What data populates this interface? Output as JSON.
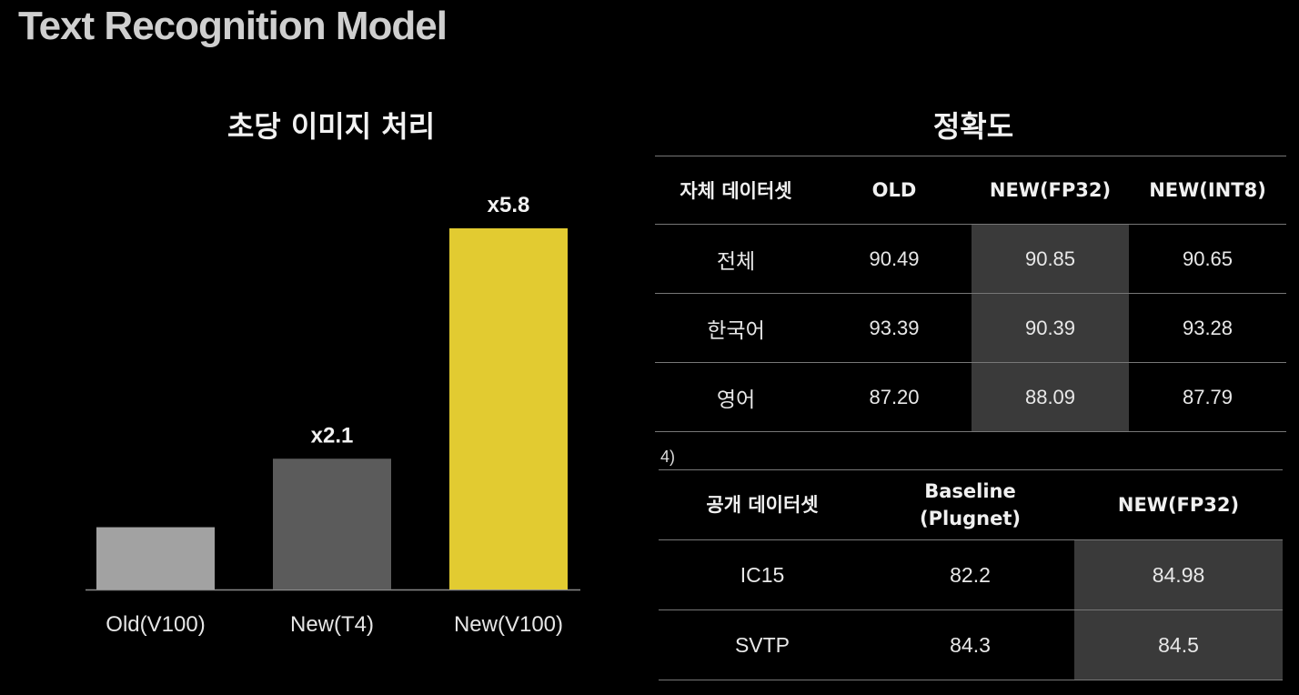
{
  "slide": {
    "title": "Text Recognition Model"
  },
  "left_panel": {
    "title": "초당 이미지 처리"
  },
  "chart_data": {
    "type": "bar",
    "title": "초당 이미지 처리",
    "categories": [
      "Old(V100)",
      "New(T4)",
      "New(V100)"
    ],
    "values": [
      1.0,
      2.1,
      5.8
    ],
    "data_labels": [
      "",
      "x2.1",
      "x5.8"
    ],
    "colors": [
      "#a2a2a2",
      "#5b5b5b",
      "#e2cb31"
    ],
    "ylim": [
      0,
      5.8
    ],
    "grid": false
  },
  "right_panel": {
    "title": "정확도",
    "table1": {
      "headers": [
        "자체 데이터셋",
        "OLD",
        "NEW(FP32)",
        "NEW(INT8)"
      ],
      "rows": [
        [
          "전체",
          "90.49",
          "90.85",
          "90.65"
        ],
        [
          "한국어",
          "93.39",
          "90.39",
          "93.28"
        ],
        [
          "영어",
          "87.20",
          "88.09",
          "87.79"
        ]
      ]
    },
    "footnote": "4)",
    "table2": {
      "headers": [
        "공개 데이터셋",
        "Baseline\n(Plugnet)",
        "NEW(FP32)"
      ],
      "rows": [
        [
          "IC15",
          "82.2",
          "84.98"
        ],
        [
          "SVTP",
          "84.3",
          "84.5"
        ]
      ]
    }
  }
}
